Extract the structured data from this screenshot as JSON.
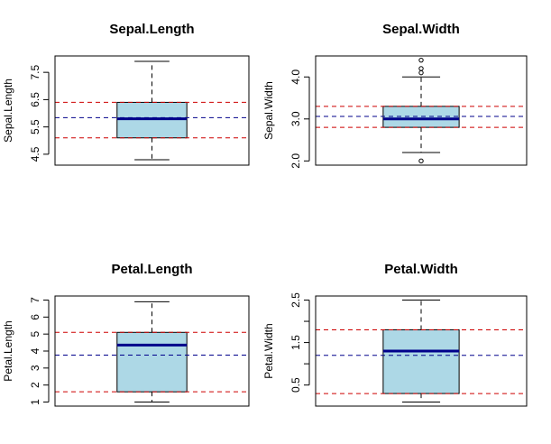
{
  "chart_data": [
    {
      "type": "box",
      "title": "Sepal.Length",
      "ylabel": "Sepal.Length",
      "ylim": [
        4.1,
        8.1
      ],
      "ticks": [
        4.5,
        5.5,
        6.5,
        7.5
      ],
      "tick_labels": [
        "4.5",
        "5.5",
        "6.5",
        "7.5"
      ],
      "box": {
        "min": 4.3,
        "q1": 5.1,
        "median": 5.8,
        "q3": 6.4,
        "max": 7.9
      },
      "outliers": [],
      "mean": 5.84,
      "quantile_lines": [
        5.1,
        6.4
      ],
      "fill": "#add8e6",
      "median_color": "#00008b",
      "mean_line_color": "#00008b",
      "quantile_line_color": "#cd0000"
    },
    {
      "type": "box",
      "title": "Sepal.Width",
      "ylabel": "Sepal.Width",
      "ylim": [
        1.9,
        4.5
      ],
      "ticks": [
        2.0,
        3.0,
        4.0
      ],
      "tick_labels": [
        "2.0",
        "3.0",
        "4.0"
      ],
      "box": {
        "min": 2.2,
        "q1": 2.8,
        "median": 3.0,
        "q3": 3.3,
        "max": 4.0
      },
      "outliers": [
        2.0,
        4.1,
        4.2,
        4.4
      ],
      "mean": 3.06,
      "quantile_lines": [
        2.8,
        3.3
      ],
      "fill": "#add8e6",
      "median_color": "#00008b",
      "mean_line_color": "#00008b",
      "quantile_line_color": "#cd0000"
    },
    {
      "type": "box",
      "title": "Petal.Length",
      "ylabel": "Petal.Length",
      "ylim": [
        0.76,
        7.24
      ],
      "ticks": [
        1,
        2,
        3,
        4,
        5,
        6,
        7
      ],
      "tick_labels": [
        "1",
        "2",
        "3",
        "4",
        "5",
        "6",
        "7"
      ],
      "box": {
        "min": 1.0,
        "q1": 1.6,
        "median": 4.35,
        "q3": 5.1,
        "max": 6.9
      },
      "outliers": [],
      "mean": 3.76,
      "quantile_lines": [
        1.6,
        5.1
      ],
      "fill": "#add8e6",
      "median_color": "#00008b",
      "mean_line_color": "#00008b",
      "quantile_line_color": "#cd0000"
    },
    {
      "type": "box",
      "title": "Petal.Width",
      "ylabel": "Petal.Width",
      "ylim": [
        0.004,
        2.596
      ],
      "ticks": [
        0.5,
        1.0,
        1.5,
        2.0,
        2.5
      ],
      "tick_labels": [
        "0.5",
        "",
        "1.5",
        "",
        "2.5"
      ],
      "box": {
        "min": 0.1,
        "q1": 0.3,
        "median": 1.3,
        "q3": 1.8,
        "max": 2.5
      },
      "outliers": [],
      "mean": 1.2,
      "quantile_lines": [
        0.3,
        1.8
      ],
      "fill": "#add8e6",
      "median_color": "#00008b",
      "mean_line_color": "#00008b",
      "quantile_line_color": "#cd0000"
    }
  ]
}
